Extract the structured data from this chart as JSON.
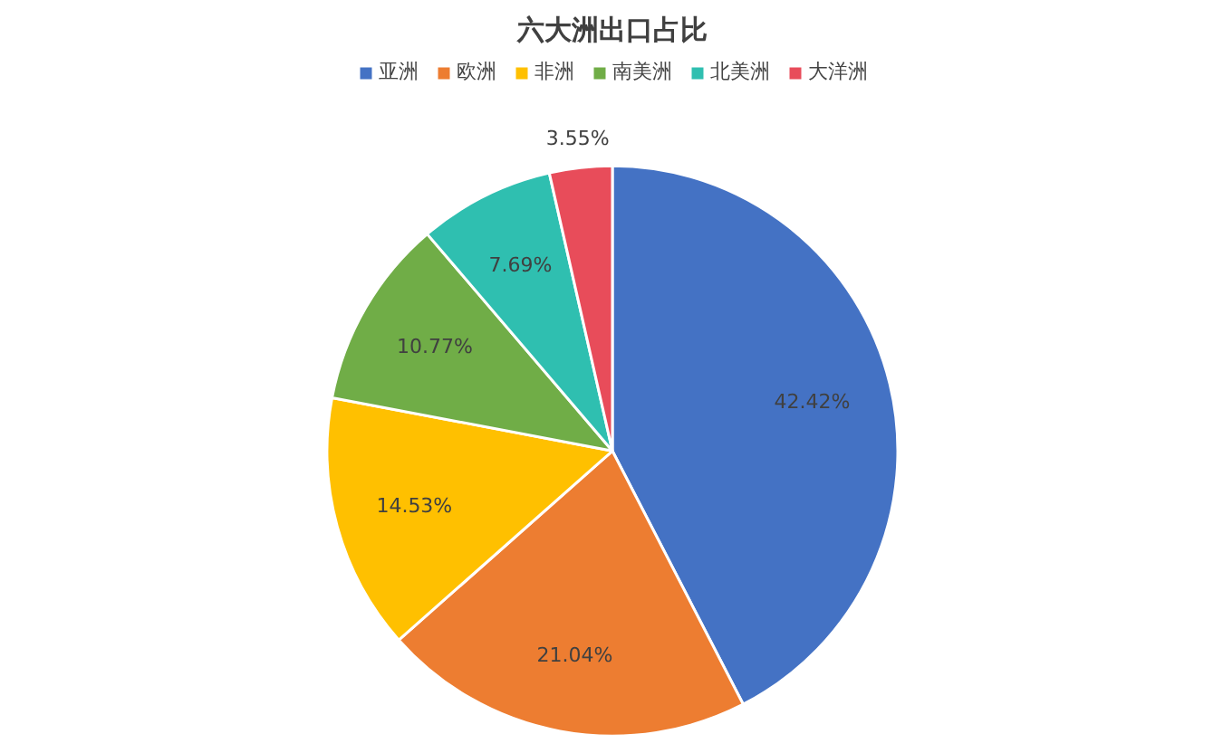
{
  "chart_data": {
    "type": "pie",
    "title": "六大洲出口占比",
    "categories": [
      "亚洲",
      "欧洲",
      "非洲",
      "南美洲",
      "北美洲",
      "大洋洲"
    ],
    "values": [
      42.42,
      21.04,
      14.53,
      10.77,
      7.69,
      3.55
    ],
    "colors": [
      "#4472c4",
      "#ed7d31",
      "#ffc000",
      "#70ad47",
      "#2fbfb0",
      "#e84c5a"
    ],
    "value_labels": [
      "42.42%",
      "21.04%",
      "14.53%",
      "10.77%",
      "7.69%",
      "3.55%"
    ],
    "legend": "top"
  }
}
